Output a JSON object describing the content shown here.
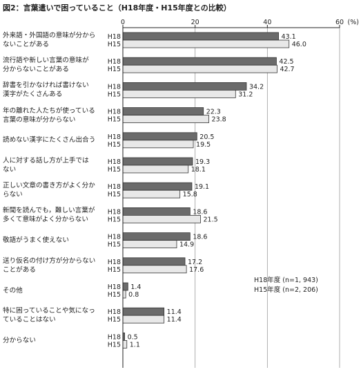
{
  "chart_data": {
    "type": "bar",
    "orientation": "horizontal",
    "title": "図2：言葉遣いで困っていること（H18年度・H15年度との比較）",
    "unit": "(%)",
    "xlim": [
      0,
      60
    ],
    "ticks": [
      "0",
      "20",
      "40",
      "60"
    ],
    "grid": true,
    "series": [
      {
        "name": "H18",
        "color": "#6b6b6b",
        "values": [
          43.1,
          42.5,
          34.2,
          22.3,
          20.5,
          19.3,
          19.1,
          18.6,
          18.6,
          17.2,
          1.4,
          11.4,
          0.5
        ]
      },
      {
        "name": "H15",
        "color": "#e8e8e8",
        "values": [
          46.0,
          42.7,
          31.2,
          23.8,
          19.5,
          18.1,
          15.8,
          21.5,
          14.9,
          17.6,
          0.8,
          11.4,
          1.1
        ]
      }
    ],
    "value_labels": {
      "H18": [
        "43.1",
        "42.5",
        "34.2",
        "22.3",
        "20.5",
        "19.3",
        "19.1",
        "18.6",
        "18.6",
        "17.2",
        "1.4",
        "11.4",
        "0.5"
      ],
      "H15": [
        "46.0",
        "42.7",
        "31.2",
        "23.8",
        "19.5",
        "18.1",
        "15.8",
        "21.5",
        "14.9",
        "17.6",
        "0.8",
        "11.4",
        "1.1"
      ]
    },
    "categories": [
      "外来語・外国語の意味が分から\nないことがある",
      "流行語や新しい言葉の意味が\n分からないことがある",
      "辞書を引かなければ書けない\n漢字がたくさんある",
      "年の離れた人たちが使っている\n言葉の意味が分からない",
      "読めない漢字にたくさん出合う",
      "人に対する話し方が上手では\nない",
      "正しい文章の書き方がよく分か\nらない",
      "新聞を読んでも，難しい言葉が\n多くて意味がよく分からない",
      "敬語がうまく使えない",
      "送り仮名の付け方が分からない\nことがある",
      "その他",
      "特に困っていることや気になっ\nていることはない",
      "分からない"
    ],
    "note": [
      "H18年度 (n=1, 943)",
      "H15年度 (n=2, 206)"
    ]
  }
}
